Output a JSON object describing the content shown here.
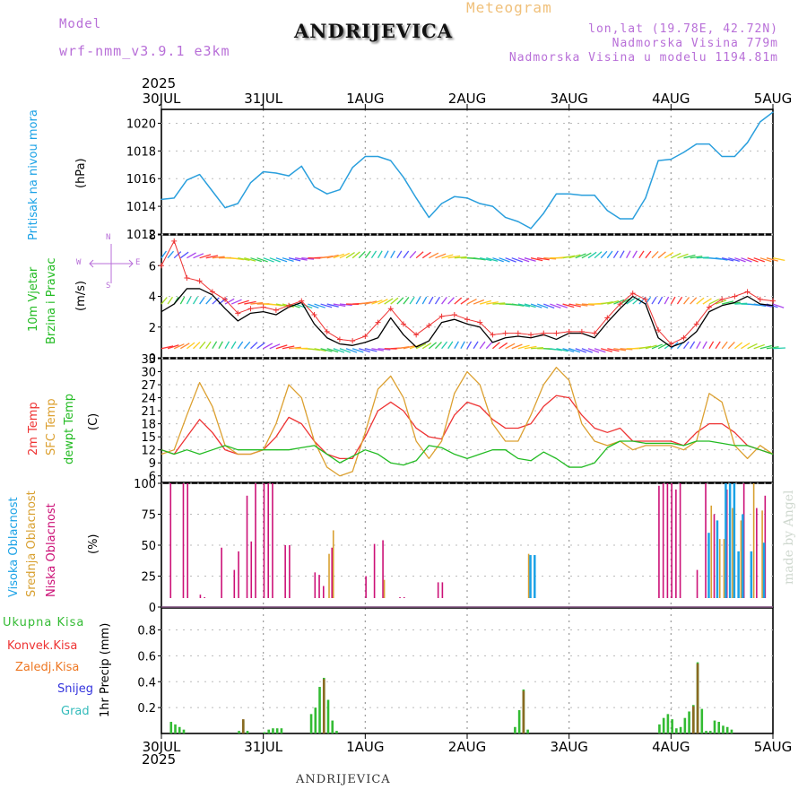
{
  "header": {
    "model_label": "Model",
    "model_name": "wrf-nmm_v3.9.1 e3km",
    "title": "ANDRIJEVICA",
    "subtitle": "Meteogram",
    "lonlat": "lon,lat (19.78E, 42.72N)",
    "elevation": "Nadmorska Visina 779m",
    "model_elevation": "Nadmorska Visina u modelu 1194.81m",
    "year": "2025"
  },
  "footer": {
    "station": "ANDRIJEVICA",
    "credit": "made by Angel"
  },
  "dates": [
    "30JUL",
    "31JUL",
    "1AUG",
    "2AUG",
    "3AUG",
    "4AUG",
    "5AUG"
  ],
  "colors": {
    "pressure": "#2a9fdd",
    "wind_speed": "#000000",
    "gust": "#ee3333",
    "temp2m": "#ee3333",
    "sfc_temp": "#dca030",
    "dewpt": "#22bb22",
    "cloud_high": "#1ba2e6",
    "cloud_mid": "#d8a030",
    "cloud_low": "#cc1177",
    "precip_total": "#33bb33",
    "precip_conv": "#ee3333",
    "precip_frozen": "#ee7722",
    "snow": "#3333dd",
    "grad": "#33bbbb"
  },
  "chart_data": [
    {
      "type": "line",
      "name": "pressure",
      "ylabel_title": "Pritisak na nivou mora",
      "ylabel_unit": "(hPa)",
      "ylim": [
        1012,
        1021
      ],
      "yticks": [
        1012,
        1014,
        1016,
        1018,
        1020
      ],
      "x_hours": [
        0,
        3,
        6,
        9,
        12,
        15,
        18,
        21,
        24,
        27,
        30,
        33,
        36,
        39,
        42,
        45,
        48,
        51,
        54,
        57,
        60,
        63,
        66,
        69,
        72,
        75,
        78,
        81,
        84,
        87,
        90,
        93,
        96,
        99,
        102,
        105,
        108,
        111,
        114,
        117,
        120,
        123,
        126,
        129,
        132,
        135,
        138,
        141,
        144
      ],
      "series": [
        {
          "name": "Pritisak",
          "values": [
            1014.5,
            1014.6,
            1015.9,
            1016.3,
            1015.1,
            1013.9,
            1014.2,
            1015.7,
            1016.5,
            1016.4,
            1016.2,
            1016.9,
            1015.4,
            1014.9,
            1015.2,
            1016.8,
            1017.6,
            1017.6,
            1017.3,
            1016.1,
            1014.6,
            1013.2,
            1014.2,
            1014.7,
            1014.6,
            1014.2,
            1014.0,
            1013.2,
            1012.9,
            1012.4,
            1013.5,
            1014.9,
            1014.9,
            1014.8,
            1014.8,
            1013.7,
            1013.1,
            1013.1,
            1014.6,
            1017.3,
            1017.4,
            1017.9,
            1018.5,
            1018.5,
            1017.6,
            1017.6,
            1018.6,
            1020.1,
            1020.8
          ]
        }
      ]
    },
    {
      "type": "line",
      "name": "wind",
      "ylabel_title": "10m Vjetar",
      "ylabel_title2": "Brzina i Pravac",
      "ylabel_unit": "(m/s)",
      "compass": {
        "n": "N",
        "w": "W",
        "e": "E",
        "s": "S"
      },
      "ylim": [
        0,
        8
      ],
      "yticks": [
        0,
        2,
        4,
        6,
        8
      ],
      "x_hours": [
        0,
        3,
        6,
        9,
        12,
        15,
        18,
        21,
        24,
        27,
        30,
        33,
        36,
        39,
        42,
        45,
        48,
        51,
        54,
        57,
        60,
        63,
        66,
        69,
        72,
        75,
        78,
        81,
        84,
        87,
        90,
        93,
        96,
        99,
        102,
        105,
        108,
        111,
        114,
        117,
        120,
        123,
        126,
        129,
        132,
        135,
        138,
        141,
        144
      ],
      "series": [
        {
          "name": "Brzina",
          "values": [
            3.0,
            3.5,
            4.5,
            4.5,
            4.1,
            3.2,
            2.4,
            2.9,
            3.0,
            2.8,
            3.3,
            3.6,
            2.2,
            1.3,
            0.9,
            0.8,
            1.0,
            1.3,
            2.6,
            1.5,
            0.7,
            1.1,
            2.3,
            2.5,
            2.2,
            2.0,
            1.0,
            1.3,
            1.4,
            1.3,
            1.5,
            1.2,
            1.6,
            1.6,
            1.3,
            2.3,
            3.2,
            4.0,
            3.5,
            1.3,
            0.7,
            1.0,
            1.7,
            3.0,
            3.4,
            3.6,
            4.0,
            3.5,
            3.4
          ]
        },
        {
          "name": "Udari",
          "values": [
            6.0,
            7.6,
            5.2,
            5.0,
            4.3,
            3.8,
            2.9,
            3.2,
            3.3,
            3.1,
            3.4,
            3.7,
            2.8,
            1.7,
            1.2,
            1.1,
            1.4,
            2.3,
            3.2,
            2.2,
            1.5,
            2.1,
            2.7,
            2.8,
            2.5,
            2.3,
            1.5,
            1.6,
            1.6,
            1.5,
            1.6,
            1.6,
            1.7,
            1.7,
            1.6,
            2.6,
            3.5,
            4.2,
            3.8,
            1.8,
            0.9,
            1.3,
            2.2,
            3.3,
            3.8,
            4.0,
            4.3,
            3.8,
            3.7
          ]
        }
      ]
    },
    {
      "type": "line",
      "name": "temperature",
      "ylabel_title": "2m Temp",
      "ylabel_title2": "SFC Temp",
      "ylabel_title3": "dewpt Temp",
      "ylabel_unit": "(C)",
      "ylim": [
        4.5,
        33
      ],
      "yticks": [
        6,
        9,
        12,
        15,
        18,
        21,
        24,
        27,
        30,
        33
      ],
      "x_hours": [
        0,
        3,
        6,
        9,
        12,
        15,
        18,
        21,
        24,
        27,
        30,
        33,
        36,
        39,
        42,
        45,
        48,
        51,
        54,
        57,
        60,
        63,
        66,
        69,
        72,
        75,
        78,
        81,
        84,
        87,
        90,
        93,
        96,
        99,
        102,
        105,
        108,
        111,
        114,
        117,
        120,
        123,
        126,
        129,
        132,
        135,
        138,
        141,
        144
      ],
      "series": [
        {
          "name": "2m Temp",
          "values": [
            12,
            11,
            15,
            19,
            16,
            12,
            11,
            11,
            12,
            15,
            19.5,
            18,
            14,
            11,
            10,
            10,
            15,
            21,
            23,
            21,
            17,
            15,
            14.5,
            20,
            23,
            22,
            19,
            17,
            17,
            18,
            22,
            24.5,
            24,
            20,
            17,
            16,
            17,
            14,
            14,
            14,
            14,
            13,
            16,
            18,
            18,
            16,
            13,
            12,
            11
          ]
        },
        {
          "name": "SFC Temp",
          "values": [
            11,
            12,
            20,
            27.5,
            22,
            13,
            11,
            11,
            12,
            18,
            27,
            24,
            14,
            8,
            6,
            7,
            16,
            26,
            29,
            24,
            14,
            10,
            14,
            25,
            30,
            27,
            18,
            14,
            14,
            20,
            27,
            31,
            28,
            18,
            14,
            13,
            14,
            12,
            13,
            13,
            13,
            12,
            14,
            25,
            23,
            13,
            10,
            13,
            11
          ]
        },
        {
          "name": "dewpt Temp",
          "values": [
            12,
            11,
            12,
            11,
            12,
            13,
            12,
            12,
            12,
            12,
            12,
            12.5,
            13,
            11,
            9,
            10.5,
            12,
            11,
            9,
            8.5,
            9.5,
            13,
            12.5,
            11,
            10,
            11,
            12,
            12,
            10,
            9.5,
            11.5,
            10,
            8,
            8,
            9,
            12.5,
            14,
            14,
            13.5,
            13.5,
            13.5,
            13,
            14,
            14,
            13.5,
            13,
            13,
            12,
            11
          ]
        }
      ]
    },
    {
      "type": "bar",
      "name": "clouds",
      "ylabel_title": "Visoka Oblacnost",
      "ylabel_title2": "Srednja Oblacnost",
      "ylabel_title3": "Niska Oblacnost",
      "ylabel_unit": "(%)",
      "ylim": [
        0,
        100
      ],
      "yticks": [
        0,
        25,
        50,
        75,
        100
      ],
      "series": [
        {
          "name": "Niska Oblacnost",
          "x_hours": [
            2,
            5,
            6,
            9,
            10,
            14,
            17,
            18,
            20,
            21,
            22,
            24,
            25,
            26,
            29,
            30,
            36,
            37,
            38,
            40,
            48,
            50,
            52,
            53,
            56,
            57,
            65,
            66,
            85,
            86,
            94,
            117,
            118,
            119,
            120,
            121,
            122,
            126,
            128,
            130,
            133,
            137,
            140,
            142
          ],
          "values": [
            100,
            100,
            100,
            10,
            8,
            48,
            30,
            45,
            90,
            53,
            100,
            100,
            100,
            100,
            50,
            50,
            28,
            26,
            17,
            48,
            25,
            51,
            54,
            7,
            8,
            8,
            20,
            20,
            7,
            6,
            5,
            98,
            100,
            100,
            100,
            95,
            100,
            30,
            100,
            75,
            95,
            100,
            80,
            90
          ]
        },
        {
          "name": "Srednja Oblacnost",
          "x_hours": [
            39,
            40,
            52,
            86,
            88,
            89,
            129,
            131,
            132,
            134,
            136,
            139,
            141
          ],
          "values": [
            43,
            62,
            22,
            43,
            7,
            7,
            82,
            55,
            55,
            80,
            70,
            100,
            78
          ]
        },
        {
          "name": "Visoka Oblacnost",
          "x_hours": [
            86,
            87,
            128,
            130,
            132,
            133,
            134,
            135,
            136,
            138,
            141
          ],
          "values": [
            42,
            42,
            60,
            70,
            100,
            100,
            100,
            45,
            75,
            45,
            52
          ]
        }
      ]
    },
    {
      "type": "bar",
      "name": "precip",
      "ylabel_title": "1hr Precip (mm)",
      "legend": [
        "Ukupna Kisa",
        "Konvek.Kisa",
        "Zaledj.Kisa",
        "Snijeg",
        "Grad"
      ],
      "ylim": [
        0,
        0.97
      ],
      "yticks": [
        0.2,
        0.4,
        0.6,
        0.8
      ],
      "series": [
        {
          "name": "Ukupna Kisa",
          "x_hours": [
            2,
            3,
            4,
            5,
            18,
            19,
            20,
            24,
            25,
            26,
            27,
            28,
            35,
            36,
            37,
            38,
            39,
            40,
            41,
            83,
            84,
            85,
            86,
            117,
            118,
            119,
            120,
            121,
            122,
            123,
            124,
            125,
            126,
            127,
            128,
            129,
            130,
            131,
            132,
            133,
            134
          ],
          "values": [
            0.09,
            0.07,
            0.05,
            0.03,
            0.02,
            0.1,
            0.02,
            0.01,
            0.03,
            0.04,
            0.04,
            0.04,
            0.15,
            0.2,
            0.36,
            0.43,
            0.26,
            0.1,
            0.02,
            0.05,
            0.18,
            0.34,
            0.03,
            0.07,
            0.12,
            0.15,
            0.11,
            0.04,
            0.05,
            0.12,
            0.17,
            0.22,
            0.55,
            0.19,
            0.02,
            0.02,
            0.1,
            0.09,
            0.06,
            0.05,
            0.03
          ]
        },
        {
          "name": "Konvek.Kisa",
          "x_hours": [
            19,
            38,
            85,
            125,
            126
          ],
          "values": [
            0.11,
            0.42,
            0.33,
            0.21,
            0.54
          ]
        }
      ]
    }
  ]
}
